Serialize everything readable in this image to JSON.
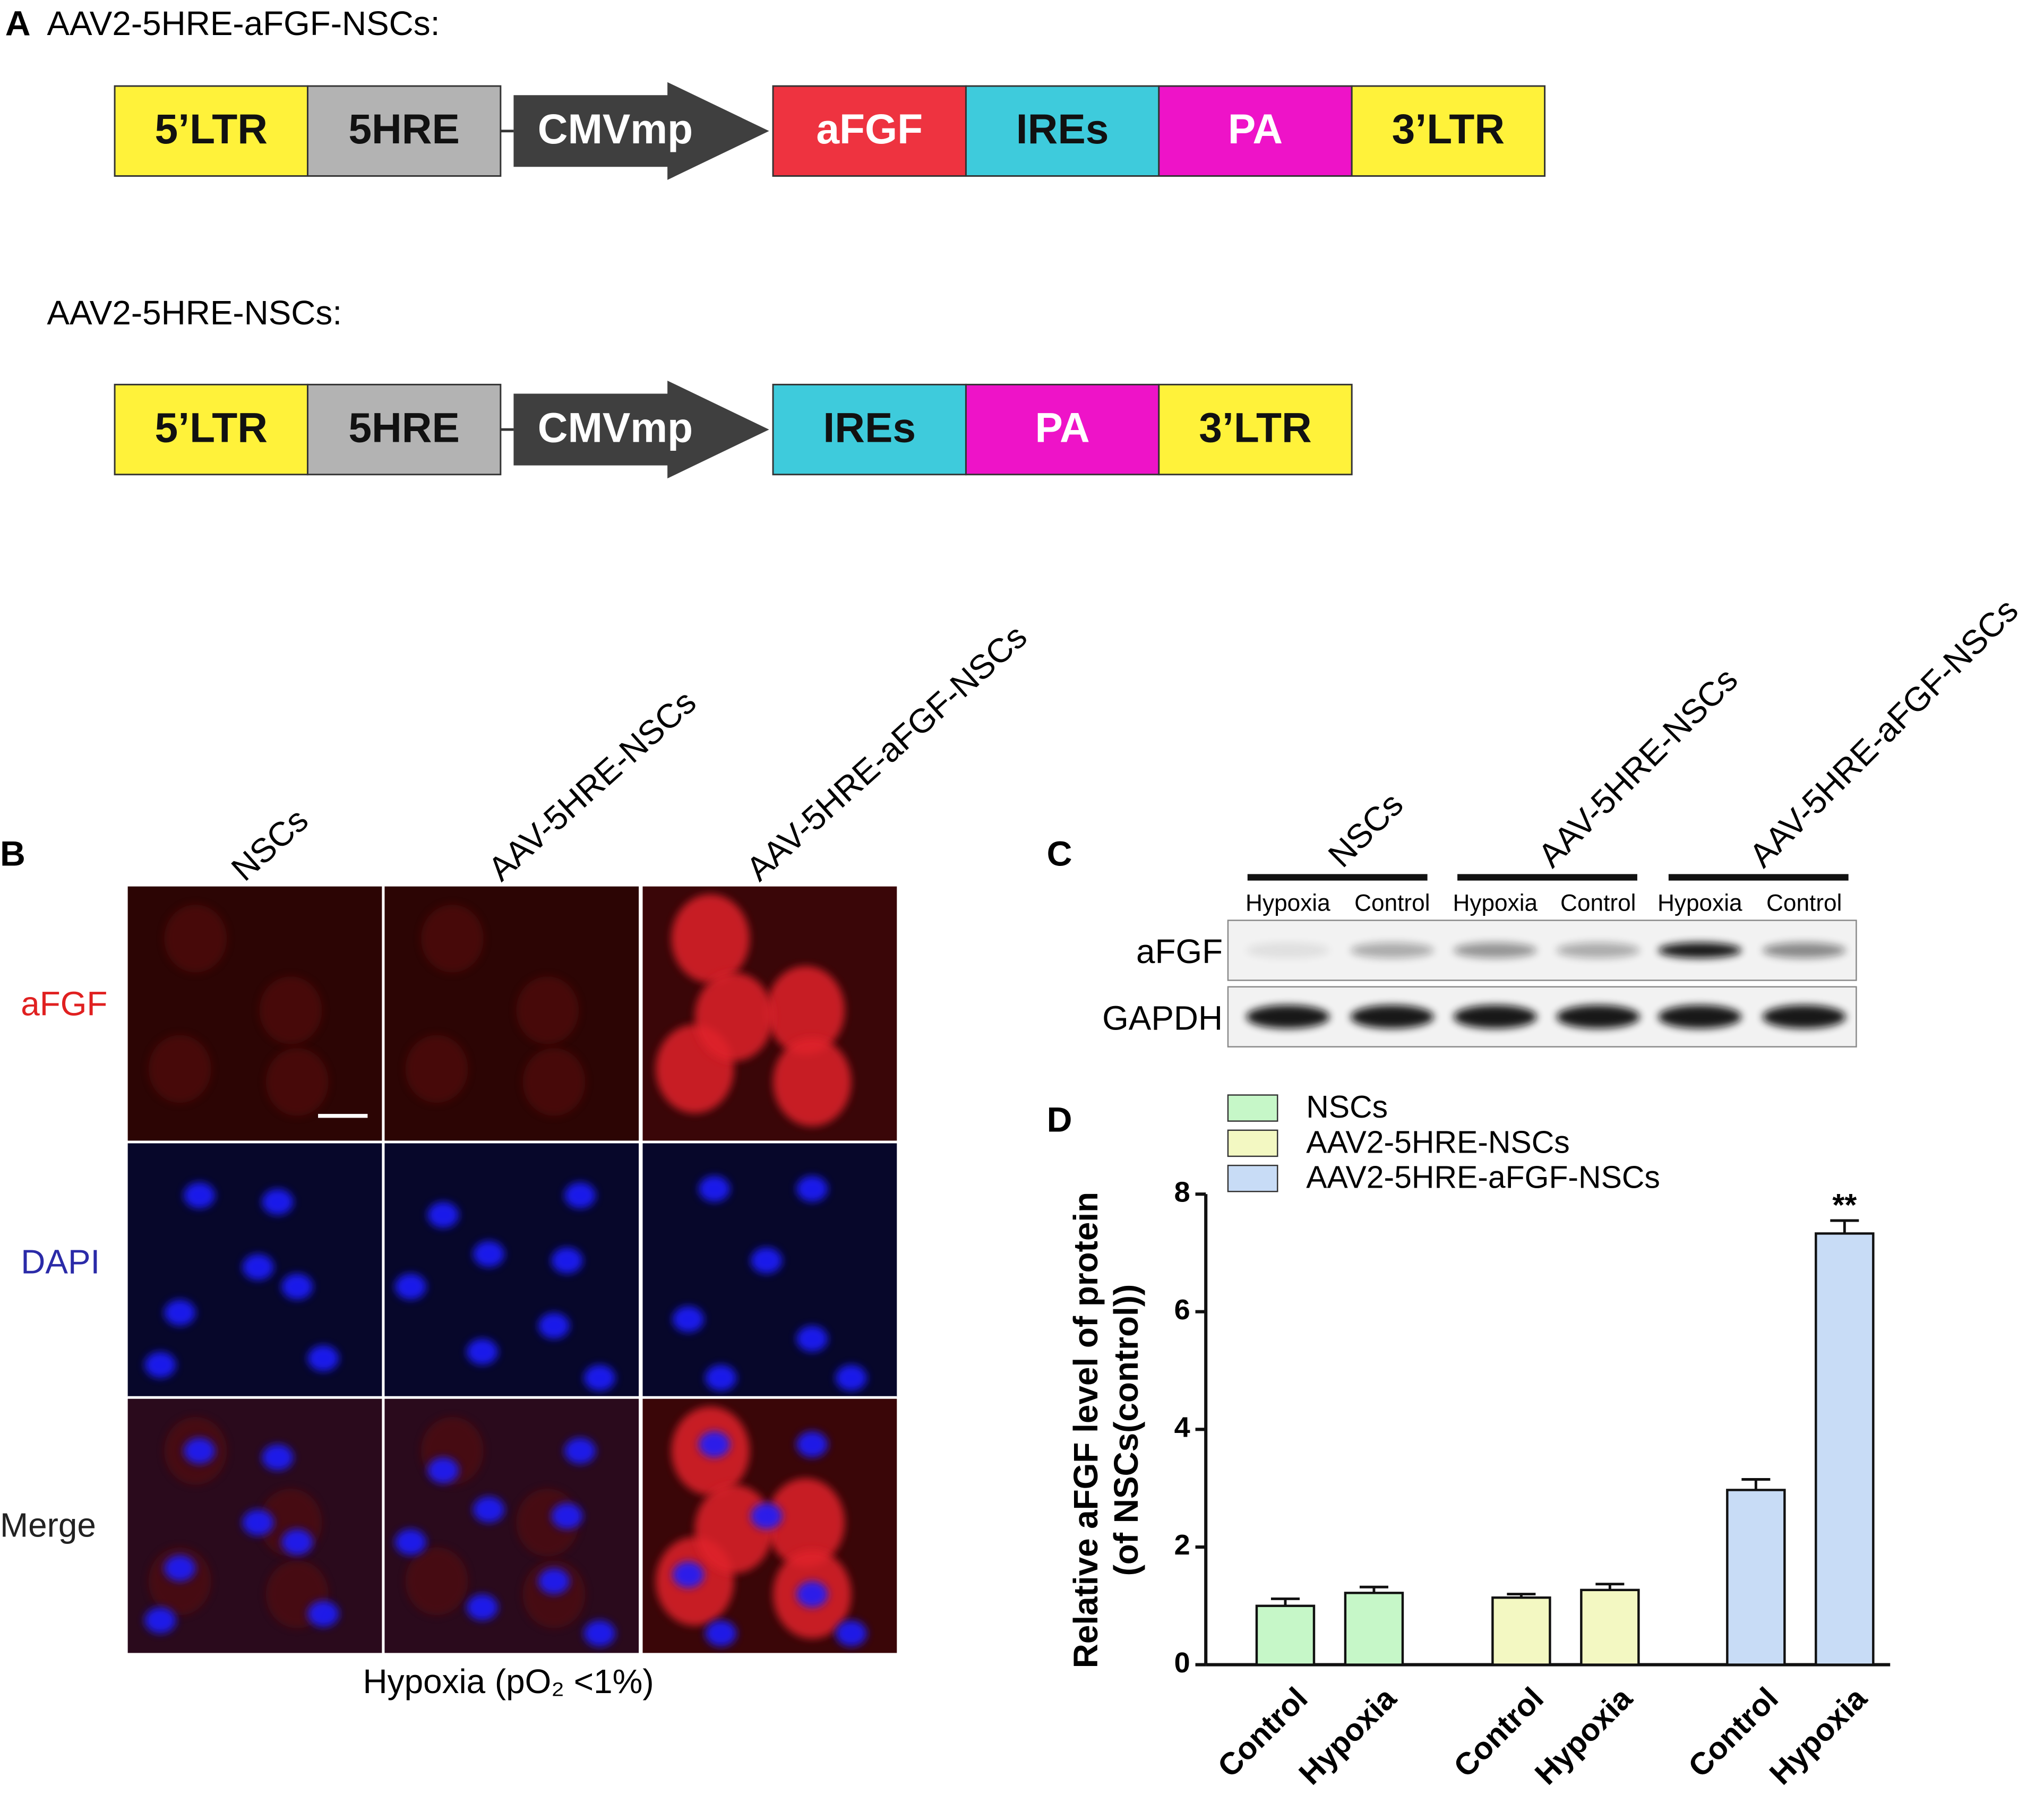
{
  "panel_a": {
    "letter": "A",
    "constructs": [
      {
        "title": "AAV2-5HRE-aFGF-NSCs:",
        "segments": [
          {
            "label": "5’LTR",
            "color": "#fff23a"
          },
          {
            "label": "5HRE",
            "color": "#b3b3b3"
          },
          {
            "label": "CMVmp",
            "color": "#3f3f3f"
          },
          {
            "label": "aFGF",
            "color": "#ee3340"
          },
          {
            "label": "IREs",
            "color": "#3ecbdc"
          },
          {
            "label": "PA",
            "color": "#ee13c8"
          },
          {
            "label": "3’LTR",
            "color": "#fff23a"
          }
        ]
      },
      {
        "title": "AAV2-5HRE-NSCs:",
        "segments": [
          {
            "label": "5’LTR",
            "color": "#fff23a"
          },
          {
            "label": "5HRE",
            "color": "#b3b3b3"
          },
          {
            "label": "CMVmp",
            "color": "#3f3f3f"
          },
          {
            "label": "IREs",
            "color": "#3ecbdc"
          },
          {
            "label": "PA",
            "color": "#ee13c8"
          },
          {
            "label": "3’LTR",
            "color": "#fff23a"
          }
        ]
      }
    ]
  },
  "panel_b": {
    "letter": "B",
    "columns": [
      "NSCs",
      "AAV-5HRE-NSCs",
      "AAV-5HRE-aFGF-NSCs"
    ],
    "rows": [
      "aFGF",
      "DAPI",
      "Merge"
    ],
    "caption": "Hypoxia (pO₂ <1%)"
  },
  "panel_c": {
    "letter": "C",
    "groups": [
      "NSCs",
      "AAV-5HRE-NSCs",
      "AAV-5HRE-aFGF-NSCs"
    ],
    "lanes": [
      "Hypoxia",
      "Control",
      "Hypoxia",
      "Control",
      "Hypoxia",
      "Control"
    ],
    "rows": [
      "aFGF",
      "GAPDH"
    ]
  },
  "chart_data": {
    "type": "bar",
    "letter": "D",
    "y_label": [
      "Relative aFGF level of protein",
      "(of NSCs(control))"
    ],
    "categories": [
      "Control",
      "Hypoxia"
    ],
    "series": [
      {
        "name": "NSCs",
        "color": "#c6f7c8",
        "values": [
          1.0,
          1.22
        ],
        "errors": [
          0.12,
          0.1
        ]
      },
      {
        "name": "AAV2-5HRE-NSCs",
        "color": "#f3f8c2",
        "values": [
          1.14,
          1.27
        ],
        "errors": [
          0.06,
          0.1
        ]
      },
      {
        "name": "AAV2-5HRE-aFGF-NSCs",
        "color": "#c8dcf6",
        "values": [
          2.97,
          7.33
        ],
        "errors": [
          0.18,
          0.22
        ]
      }
    ],
    "annotation": "**",
    "ylim": [
      0,
      8
    ],
    "yticks": [
      0,
      2,
      4,
      6,
      8
    ]
  }
}
